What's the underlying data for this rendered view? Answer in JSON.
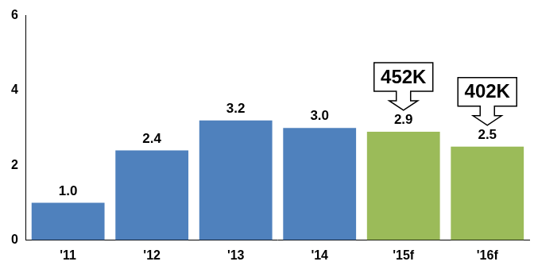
{
  "chart_data": {
    "type": "bar",
    "categories": [
      "'11",
      "'12",
      "'13",
      "'14",
      "'15f",
      "'16f"
    ],
    "values": [
      1.0,
      2.4,
      3.2,
      3.0,
      2.9,
      2.5
    ],
    "value_labels": [
      "1.0",
      "2.4",
      "3.2",
      "3.0",
      "2.9",
      "2.5"
    ],
    "colors": [
      "#4f81bd",
      "#4f81bd",
      "#4f81bd",
      "#4f81bd",
      "#9bbb59",
      "#9bbb59"
    ],
    "ylim": [
      0,
      6
    ],
    "yticks": [
      0,
      2,
      4,
      6
    ],
    "grid": false,
    "data_labels": true,
    "annotations": [
      {
        "text": "452K",
        "category": "'15f"
      },
      {
        "text": "402K",
        "category": "'16f"
      }
    ]
  }
}
